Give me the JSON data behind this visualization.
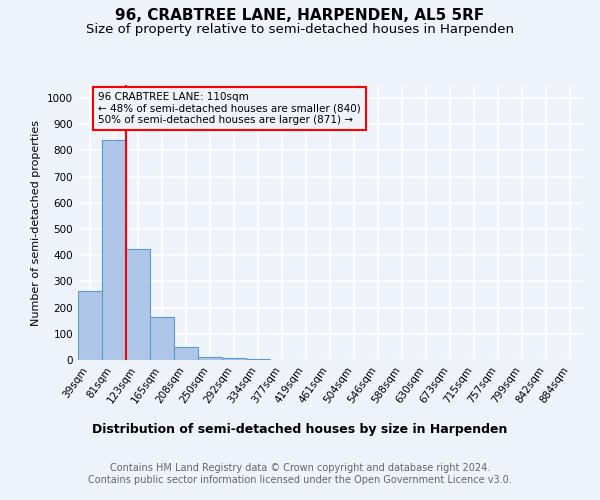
{
  "title": "96, CRABTREE LANE, HARPENDEN, AL5 5RF",
  "subtitle": "Size of property relative to semi-detached houses in Harpenden",
  "xlabel": "Distribution of semi-detached houses by size in Harpenden",
  "ylabel": "Number of semi-detached properties",
  "categories": [
    "39sqm",
    "81sqm",
    "123sqm",
    "165sqm",
    "208sqm",
    "250sqm",
    "292sqm",
    "334sqm",
    "377sqm",
    "419sqm",
    "461sqm",
    "504sqm",
    "546sqm",
    "588sqm",
    "630sqm",
    "673sqm",
    "715sqm",
    "757sqm",
    "799sqm",
    "842sqm",
    "884sqm"
  ],
  "values": [
    265,
    840,
    425,
    165,
    50,
    12,
    8,
    5,
    0,
    0,
    0,
    0,
    0,
    0,
    0,
    0,
    0,
    0,
    0,
    0,
    0
  ],
  "bar_color": "#aec6e8",
  "bar_edge_color": "#5b9bd5",
  "ylim": [
    0,
    1050
  ],
  "yticks": [
    0,
    100,
    200,
    300,
    400,
    500,
    600,
    700,
    800,
    900,
    1000
  ],
  "annotation_text_line1": "96 CRABTREE LANE: 110sqm",
  "annotation_text_line2": "← 48% of semi-detached houses are smaller (840)",
  "annotation_text_line3": "50% of semi-detached houses are larger (871) →",
  "footer_line1": "Contains HM Land Registry data © Crown copyright and database right 2024.",
  "footer_line2": "Contains public sector information licensed under the Open Government Licence v3.0.",
  "background_color": "#eef2f9",
  "grid_color": "#ffffff",
  "title_fontsize": 11,
  "subtitle_fontsize": 9.5,
  "xlabel_fontsize": 9,
  "ylabel_fontsize": 8,
  "tick_fontsize": 7.5,
  "annot_fontsize": 7.5,
  "footer_fontsize": 7
}
